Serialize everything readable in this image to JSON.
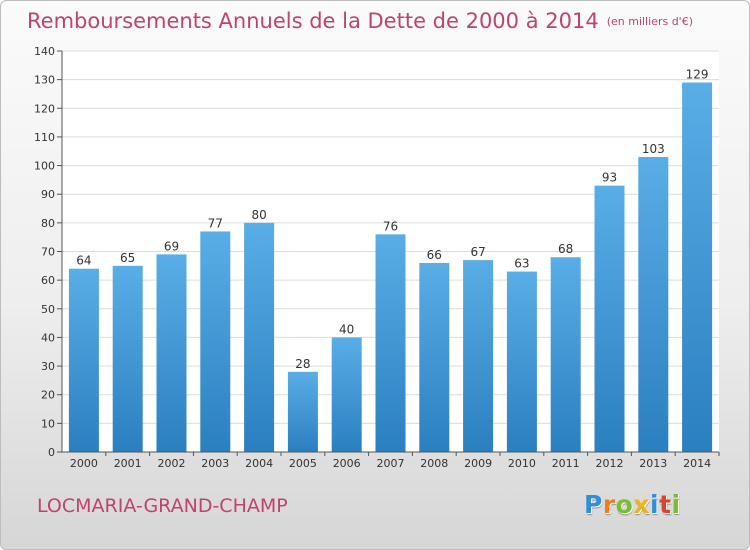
{
  "chart_data": {
    "type": "bar",
    "title": "Remboursements Annuels de la Dette de 2000 à 2014",
    "unit": "(en milliers d'€)",
    "categories": [
      "2000",
      "2001",
      "2002",
      "2003",
      "2004",
      "2005",
      "2006",
      "2007",
      "2008",
      "2009",
      "2010",
      "2011",
      "2012",
      "2013",
      "2014"
    ],
    "values": [
      64,
      65,
      69,
      77,
      80,
      28,
      40,
      76,
      66,
      67,
      63,
      68,
      93,
      103,
      129
    ],
    "ylim": [
      0,
      140
    ],
    "yticks": [
      0,
      10,
      20,
      30,
      40,
      50,
      60,
      70,
      80,
      90,
      100,
      110,
      120,
      130,
      140
    ],
    "grid": true,
    "colors": {
      "bar_light": "#5aaee6",
      "bar_dark": "#2a7fc0",
      "title": "#c0426e"
    }
  },
  "footer": {
    "commune": "LOCMARIA-GRAND-CHAMP",
    "brand_letters": [
      "P",
      "r",
      "o",
      "x",
      "i",
      "t",
      "i"
    ],
    "brand_colors": [
      "#2f8fd8",
      "#f07c1e",
      "#7cbd2f",
      "#e8b51c",
      "#2f8fd8",
      "#d9462e",
      "#7cbd2f"
    ]
  }
}
